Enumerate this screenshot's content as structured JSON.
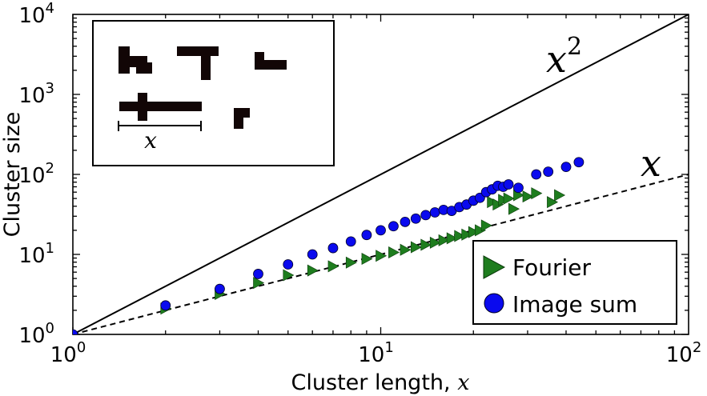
{
  "chart_data": {
    "type": "scatter",
    "xlabel": "Cluster length, ",
    "xlabel_var": "x",
    "ylabel": "Cluster size",
    "xscale": "log",
    "yscale": "log",
    "xlim": [
      1,
      100
    ],
    "ylim": [
      1,
      10000
    ],
    "x_ticks": [
      {
        "base": "10",
        "exp": "0",
        "value": 1
      },
      {
        "base": "10",
        "exp": "1",
        "value": 10
      },
      {
        "base": "10",
        "exp": "2",
        "value": 100
      }
    ],
    "y_ticks": [
      {
        "base": "10",
        "exp": "0",
        "value": 1
      },
      {
        "base": "10",
        "exp": "1",
        "value": 10
      },
      {
        "base": "10",
        "exp": "2",
        "value": 100
      },
      {
        "base": "10",
        "exp": "3",
        "value": 1000
      },
      {
        "base": "10",
        "exp": "4",
        "value": 10000
      }
    ],
    "reference_lines": [
      {
        "label_base": "x",
        "label_exp": "2",
        "power": 2,
        "style": "solid"
      },
      {
        "label_base": "x",
        "label_exp": "",
        "power": 1,
        "style": "dashed"
      }
    ],
    "series": [
      {
        "name": "Fourier",
        "marker": "triangle-right",
        "color": "#1e7d1e",
        "points": [
          [
            1,
            1
          ],
          [
            2,
            2.1
          ],
          [
            3,
            3.2
          ],
          [
            4,
            4.4
          ],
          [
            5,
            5.5
          ],
          [
            6,
            6.3
          ],
          [
            7,
            7.1
          ],
          [
            8,
            7.9
          ],
          [
            9,
            8.8
          ],
          [
            10,
            9.6
          ],
          [
            11,
            10.6
          ],
          [
            12,
            11.4
          ],
          [
            13,
            12.3
          ],
          [
            14,
            13.2
          ],
          [
            15,
            14.0
          ],
          [
            16,
            15.0
          ],
          [
            17,
            15.9
          ],
          [
            18,
            17.0
          ],
          [
            19,
            17.7
          ],
          [
            20,
            19.0
          ],
          [
            21,
            20.0
          ],
          [
            22,
            23.0
          ],
          [
            23,
            45.0
          ],
          [
            24,
            42.0
          ],
          [
            25,
            48.0
          ],
          [
            26,
            50.0
          ],
          [
            27,
            37.0
          ],
          [
            28,
            55.0
          ],
          [
            30,
            53.0
          ],
          [
            32,
            58.0
          ],
          [
            36,
            45.0
          ],
          [
            38,
            55.0
          ]
        ]
      },
      {
        "name": "Image sum",
        "marker": "circle",
        "color": "#0a0aee",
        "points": [
          [
            1,
            1
          ],
          [
            2,
            2.3
          ],
          [
            3,
            3.7
          ],
          [
            4,
            5.7
          ],
          [
            5,
            7.5
          ],
          [
            6,
            10.0
          ],
          [
            7,
            12.0
          ],
          [
            8,
            14.5
          ],
          [
            9,
            17.5
          ],
          [
            10,
            20.0
          ],
          [
            11,
            22.5
          ],
          [
            12,
            25.5
          ],
          [
            13,
            28.0
          ],
          [
            14,
            31.0
          ],
          [
            15,
            33.5
          ],
          [
            16,
            36.0
          ],
          [
            17,
            35.0
          ],
          [
            18,
            39.0
          ],
          [
            19,
            42.0
          ],
          [
            20,
            47.0
          ],
          [
            21,
            51.0
          ],
          [
            22,
            60.0
          ],
          [
            23,
            65.0
          ],
          [
            24,
            72.0
          ],
          [
            25,
            70.0
          ],
          [
            26,
            75.0
          ],
          [
            28,
            68.0
          ],
          [
            32,
            100.0
          ],
          [
            35,
            108.0
          ],
          [
            40,
            124.0
          ],
          [
            44,
            142.0
          ]
        ]
      }
    ],
    "legend": {
      "position": "bottom-right",
      "entries": [
        "Fourier",
        "Image sum"
      ]
    },
    "inset": {
      "description_hidden": true,
      "scale_label": "x"
    }
  }
}
